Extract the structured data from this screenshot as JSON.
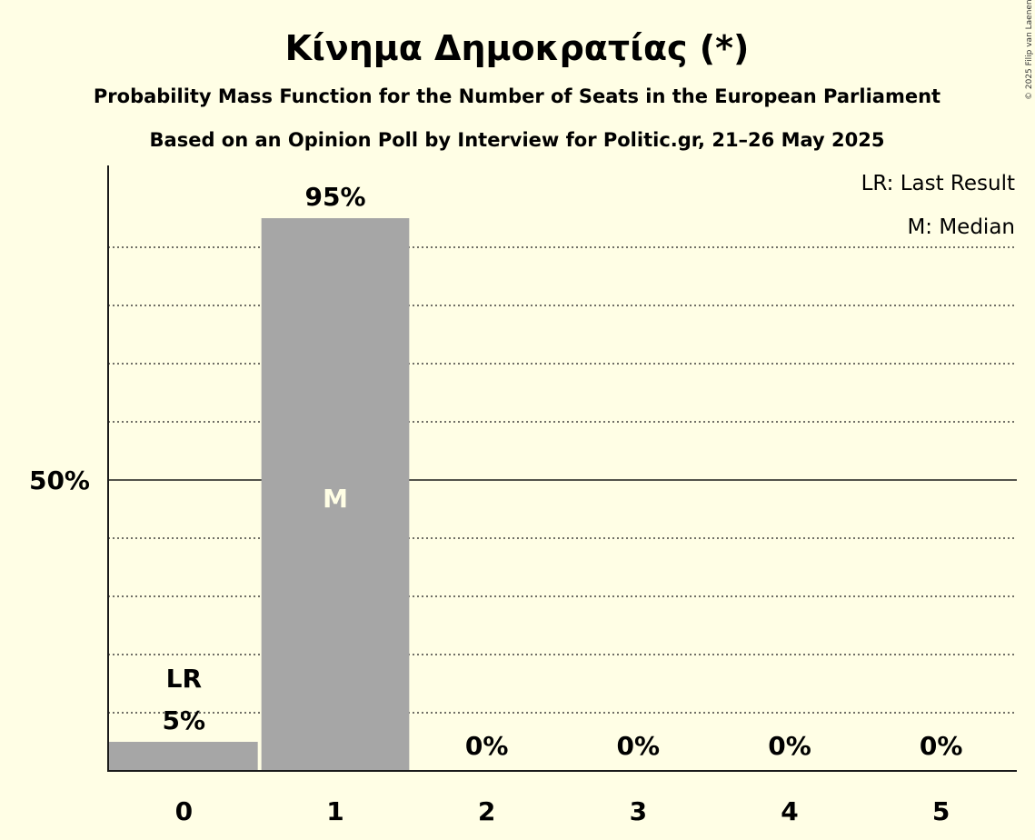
{
  "chart_data": {
    "type": "bar",
    "title": "Κίνημα Δημοκρατίας (*)",
    "subtitle": "Probability Mass Function for the Number of Seats in the European Parliament",
    "subtitle2": "Based on an Opinion Poll by Interview for Politic.gr, 21–26 May 2025",
    "copyright": "© 2025 Filip van Laenen",
    "legend": [
      "LR: Last Result",
      "M: Median"
    ],
    "legend_position": "top-right",
    "categories": [
      "0",
      "1",
      "2",
      "3",
      "4",
      "5"
    ],
    "values": [
      5,
      95,
      0,
      0,
      0,
      0
    ],
    "value_labels": [
      "5%",
      "95%",
      "0%",
      "0%",
      "0%",
      "0%"
    ],
    "bar_color": "#A6A6A6",
    "last_result_index": 0,
    "last_result_label": "LR",
    "median_index": 1,
    "median_label": "M",
    "ylim": [
      0,
      100
    ],
    "ytick_value": 50,
    "ytick_label": "50%",
    "grid": true
  }
}
